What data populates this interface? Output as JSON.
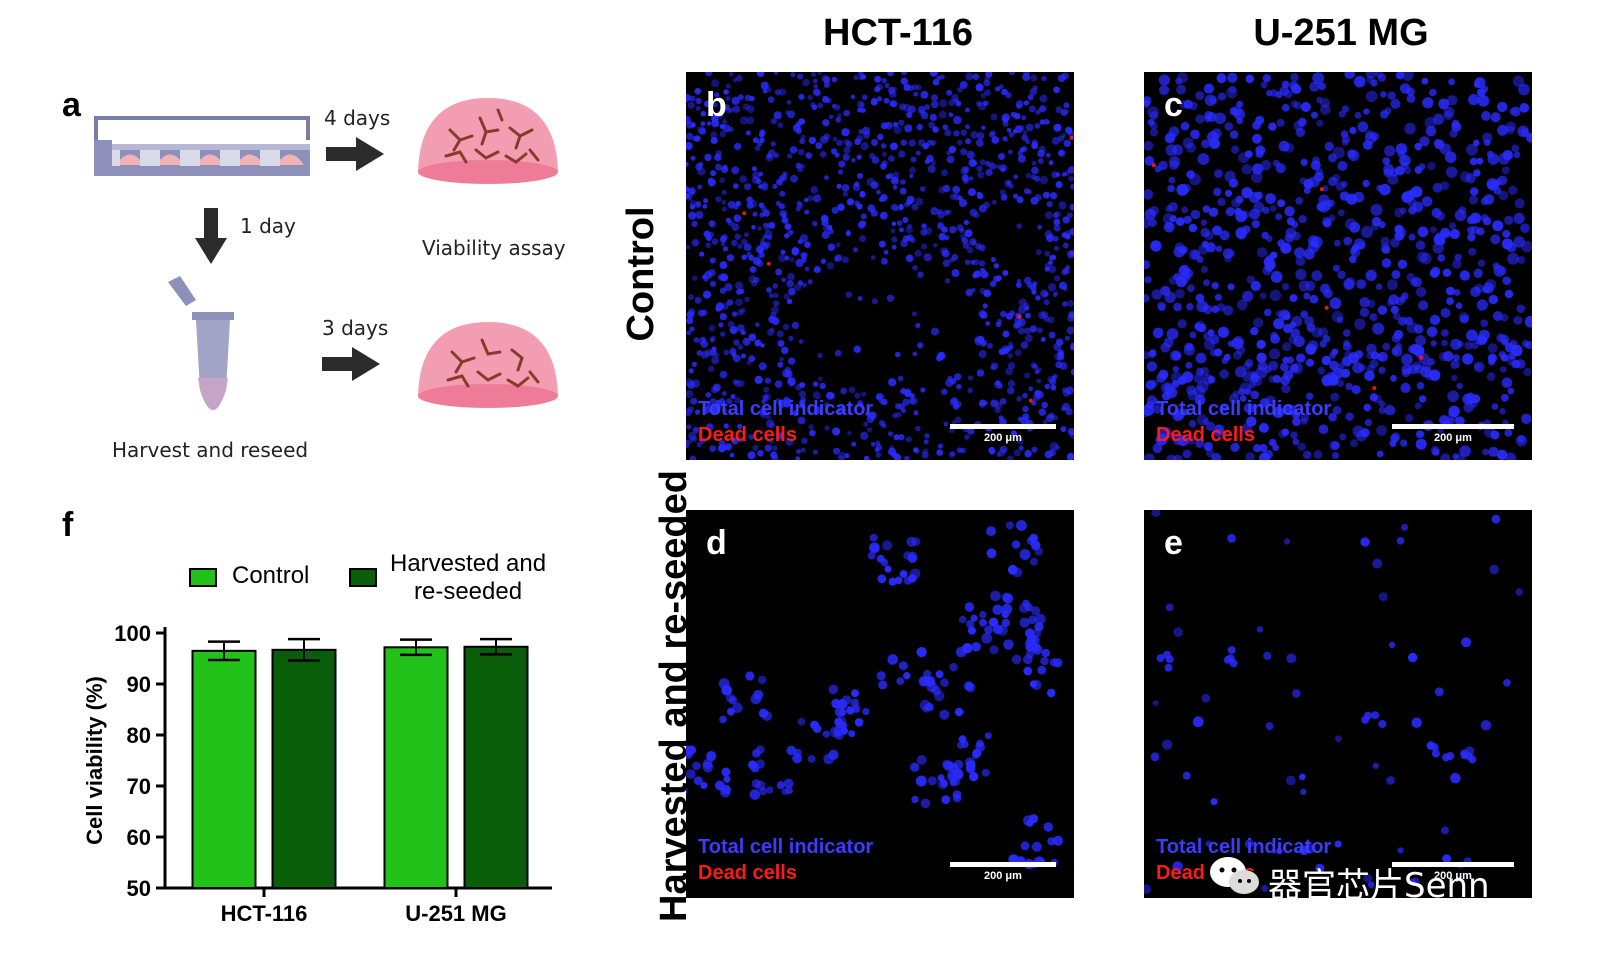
{
  "panels": {
    "a": "a",
    "b": "b",
    "c": "c",
    "d": "d",
    "e": "e",
    "f": "f"
  },
  "columns": [
    "HCT-116",
    "U-251 MG"
  ],
  "rows": [
    "Control",
    "Harvested and re-seeded"
  ],
  "schematic": {
    "step1": "4 days",
    "step2": "1 day",
    "step3": "3 days",
    "viability": "Viability assay",
    "harvest": "Harvest and reseed"
  },
  "micrographs": {
    "legend_total": "Total cell indicator",
    "legend_dead": "Dead cells",
    "scale": "200 μm",
    "colors": {
      "nuclei": "#2a2cff",
      "dead": "#ff1a1a",
      "background": "#000000"
    }
  },
  "chart_data": {
    "type": "bar",
    "categories": [
      "HCT-116",
      "U-251 MG"
    ],
    "series": [
      {
        "name": "Control",
        "values": [
          96.5,
          97.2
        ],
        "errors": [
          1.8,
          1.5
        ],
        "color": "#22c21a"
      },
      {
        "name": "Harvested and re-seeded",
        "values": [
          96.7,
          97.3
        ],
        "errors": [
          2.1,
          1.5
        ],
        "color": "#0a5e0a"
      }
    ],
    "ylabel": "Cell viability (%)",
    "ylim": [
      50,
      100
    ],
    "yticks": [
      50,
      60,
      70,
      80,
      90,
      100
    ],
    "legend_position": "top",
    "legend_labels": [
      "Control",
      "Harvested and",
      "re-seeded"
    ]
  },
  "watermark": "器官芯片Senn"
}
